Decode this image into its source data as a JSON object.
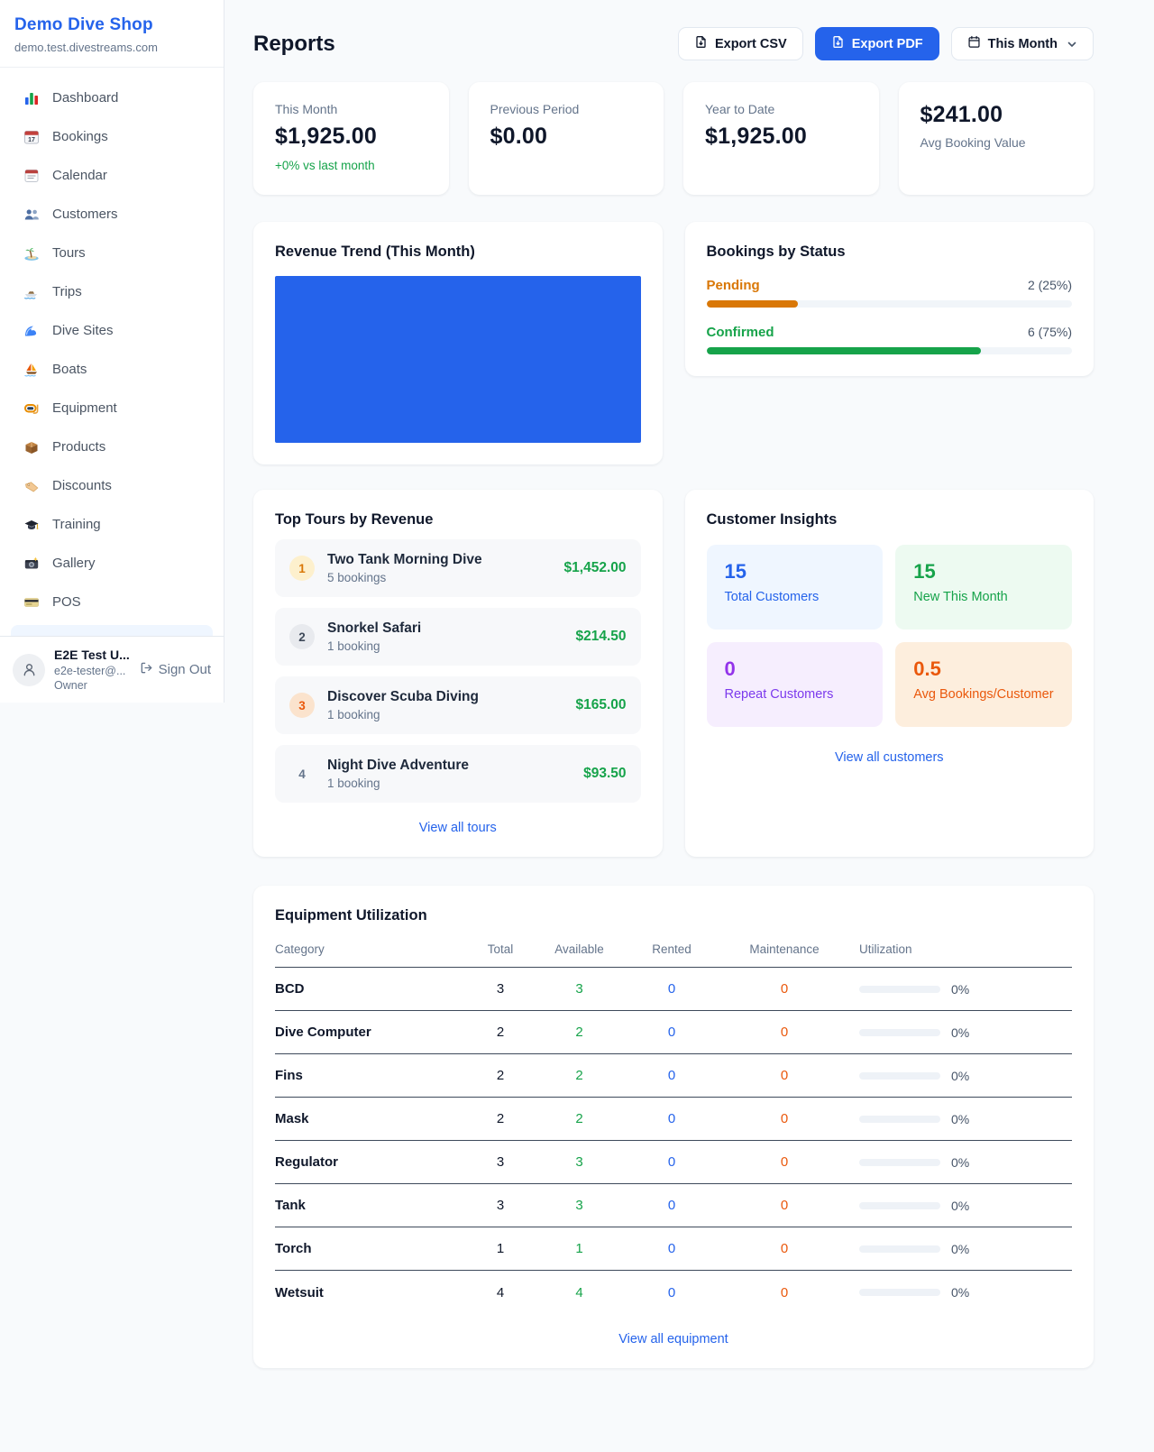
{
  "colors": {
    "accent": "#2563eb",
    "green": "#16a34a",
    "pending_orange": "#d97706",
    "maintenance_orange": "#ea580c"
  },
  "sidebar": {
    "brand": {
      "name": "Demo Dive Shop",
      "domain": "demo.test.divestreams.com"
    },
    "nav": [
      {
        "icon": "dashboard-icon",
        "label": "Dashboard"
      },
      {
        "icon": "bookings-icon",
        "label": "Bookings"
      },
      {
        "icon": "calendar-icon",
        "label": "Calendar"
      },
      {
        "icon": "customers-icon",
        "label": "Customers"
      },
      {
        "icon": "tours-icon",
        "label": "Tours"
      },
      {
        "icon": "trips-icon",
        "label": "Trips"
      },
      {
        "icon": "dive-sites-icon",
        "label": "Dive Sites"
      },
      {
        "icon": "boats-icon",
        "label": "Boats"
      },
      {
        "icon": "equipment-icon",
        "label": "Equipment"
      },
      {
        "icon": "products-icon",
        "label": "Products"
      },
      {
        "icon": "discounts-icon",
        "label": "Discounts"
      },
      {
        "icon": "training-icon",
        "label": "Training"
      },
      {
        "icon": "gallery-icon",
        "label": "Gallery"
      },
      {
        "icon": "pos-icon",
        "label": "POS"
      }
    ],
    "user": {
      "name": "E2E Test U...",
      "email": "e2e-tester@...",
      "role": "Owner",
      "sign_out": "Sign Out"
    }
  },
  "header": {
    "title": "Reports",
    "export_csv": "Export CSV",
    "export_pdf": "Export PDF",
    "period": "This Month"
  },
  "stats": [
    {
      "label": "This Month",
      "value": "$1,925.00",
      "delta": "+0% vs last month"
    },
    {
      "label": "Previous Period",
      "value": "$0.00"
    },
    {
      "label": "Year to Date",
      "value": "$1,925.00"
    },
    {
      "label": "Avg Booking Value",
      "value": "$241.00",
      "value_first": true
    }
  ],
  "revenue_trend": {
    "title": "Revenue Trend (This Month)",
    "bar_color": "#2563eb"
  },
  "bookings_by_status": {
    "title": "Bookings by Status",
    "items": [
      {
        "label": "Pending",
        "count": "2 (25%)",
        "percent": 25,
        "color": "#d97706"
      },
      {
        "label": "Confirmed",
        "count": "6 (75%)",
        "percent": 75,
        "color": "#16a34a"
      }
    ]
  },
  "top_tours": {
    "title": "Top Tours by Revenue",
    "view_all": "View all tours",
    "items": [
      {
        "rank": "1",
        "name": "Two Tank Morning Dive",
        "bookings": "5 bookings",
        "revenue": "$1,452.00",
        "badge_bg": "#fdf0cd",
        "badge_color": "#d97706"
      },
      {
        "rank": "2",
        "name": "Snorkel Safari",
        "bookings": "1 booking",
        "revenue": "$214.50",
        "badge_bg": "#e8eaee",
        "badge_color": "#3f4a5a"
      },
      {
        "rank": "3",
        "name": "Discover Scuba Diving",
        "bookings": "1 booking",
        "revenue": "$165.00",
        "badge_bg": "#fbe3cd",
        "badge_color": "#ea580c"
      },
      {
        "rank": "4",
        "name": "Night Dive Adventure",
        "bookings": "1 booking",
        "revenue": "$93.50",
        "badge_bg": "transparent",
        "badge_color": "#64748b"
      }
    ]
  },
  "customer_insights": {
    "title": "Customer Insights",
    "view_all": "View all customers",
    "cards": [
      {
        "value": "15",
        "label": "Total Customers",
        "bg": "#eff6ff",
        "value_color": "#2563eb",
        "label_color": "#2563eb"
      },
      {
        "value": "15",
        "label": "New This Month",
        "bg": "#edfaf1",
        "value_color": "#16a34a",
        "label_color": "#16a34a"
      },
      {
        "value": "0",
        "label": "Repeat Customers",
        "bg": "#f6eefe",
        "value_color": "#9333ea",
        "label_color": "#7c3aed"
      },
      {
        "value": "0.5",
        "label": "Avg Bookings/Customer",
        "bg": "#fdeedd",
        "value_color": "#ea580c",
        "label_color": "#ea580c"
      }
    ]
  },
  "equipment": {
    "title": "Equipment Utilization",
    "view_all": "View all equipment",
    "columns": [
      "Category",
      "Total",
      "Available",
      "Rented",
      "Maintenance",
      "Utilization"
    ],
    "rows": [
      {
        "category": "BCD",
        "total": "3",
        "available": "3",
        "rented": "0",
        "maintenance": "0",
        "utilization": "0%",
        "utilization_pct": 0
      },
      {
        "category": "Dive Computer",
        "total": "2",
        "available": "2",
        "rented": "0",
        "maintenance": "0",
        "utilization": "0%",
        "utilization_pct": 0
      },
      {
        "category": "Fins",
        "total": "2",
        "available": "2",
        "rented": "0",
        "maintenance": "0",
        "utilization": "0%",
        "utilization_pct": 0
      },
      {
        "category": "Mask",
        "total": "2",
        "available": "2",
        "rented": "0",
        "maintenance": "0",
        "utilization": "0%",
        "utilization_pct": 0
      },
      {
        "category": "Regulator",
        "total": "3",
        "available": "3",
        "rented": "0",
        "maintenance": "0",
        "utilization": "0%",
        "utilization_pct": 0
      },
      {
        "category": "Tank",
        "total": "3",
        "available": "3",
        "rented": "0",
        "maintenance": "0",
        "utilization": "0%",
        "utilization_pct": 0
      },
      {
        "category": "Torch",
        "total": "1",
        "available": "1",
        "rented": "0",
        "maintenance": "0",
        "utilization": "0%",
        "utilization_pct": 0
      },
      {
        "category": "Wetsuit",
        "total": "4",
        "available": "4",
        "rented": "0",
        "maintenance": "0",
        "utilization": "0%",
        "utilization_pct": 0
      }
    ]
  }
}
